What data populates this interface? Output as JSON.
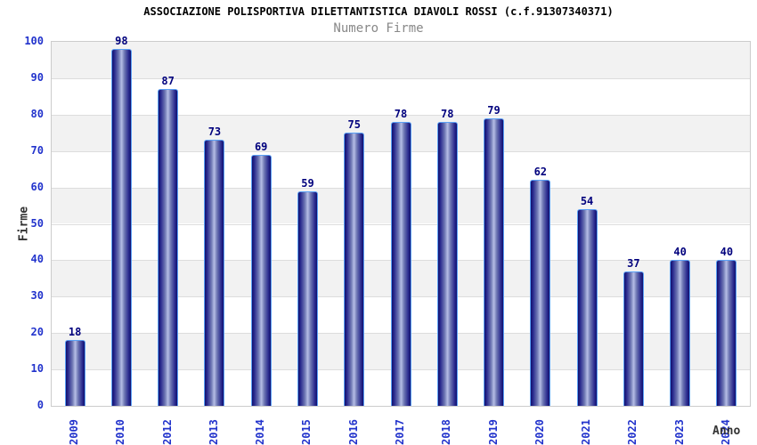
{
  "chart_data": {
    "type": "bar",
    "title": "ASSOCIAZIONE POLISPORTIVA DILETTANTISTICA DIAVOLI ROSSI (c.f.91307340371)",
    "subtitle": "Numero Firme",
    "xlabel": "Anno",
    "ylabel": "Firme",
    "categories": [
      "2009",
      "2010",
      "2012",
      "2013",
      "2014",
      "2015",
      "2016",
      "2017",
      "2018",
      "2019",
      "2020",
      "2021",
      "2022",
      "2023",
      "2024"
    ],
    "values": [
      18,
      98,
      87,
      73,
      69,
      59,
      75,
      78,
      78,
      79,
      62,
      54,
      37,
      40,
      40
    ],
    "ylim": [
      0,
      100
    ],
    "ytick_step": 10,
    "grid": true,
    "legend": "none",
    "band_pattern": "alternating gray/white horizontal bands, gray for 90-100, 70-80, 50-60, 30-40, 10-20",
    "colors": {
      "bar_edge": "#10106e",
      "bar_center": "#b6bee6",
      "bar_border": "#5aa0f5",
      "value_label": "#00007d",
      "tick_label": "#2233cc",
      "band_gray": "#f2f2f2",
      "gridline": "#dddddd",
      "plot_border": "#cccccc",
      "axis_label": "#333333",
      "title": "#000000",
      "subtitle": "#888888"
    }
  }
}
